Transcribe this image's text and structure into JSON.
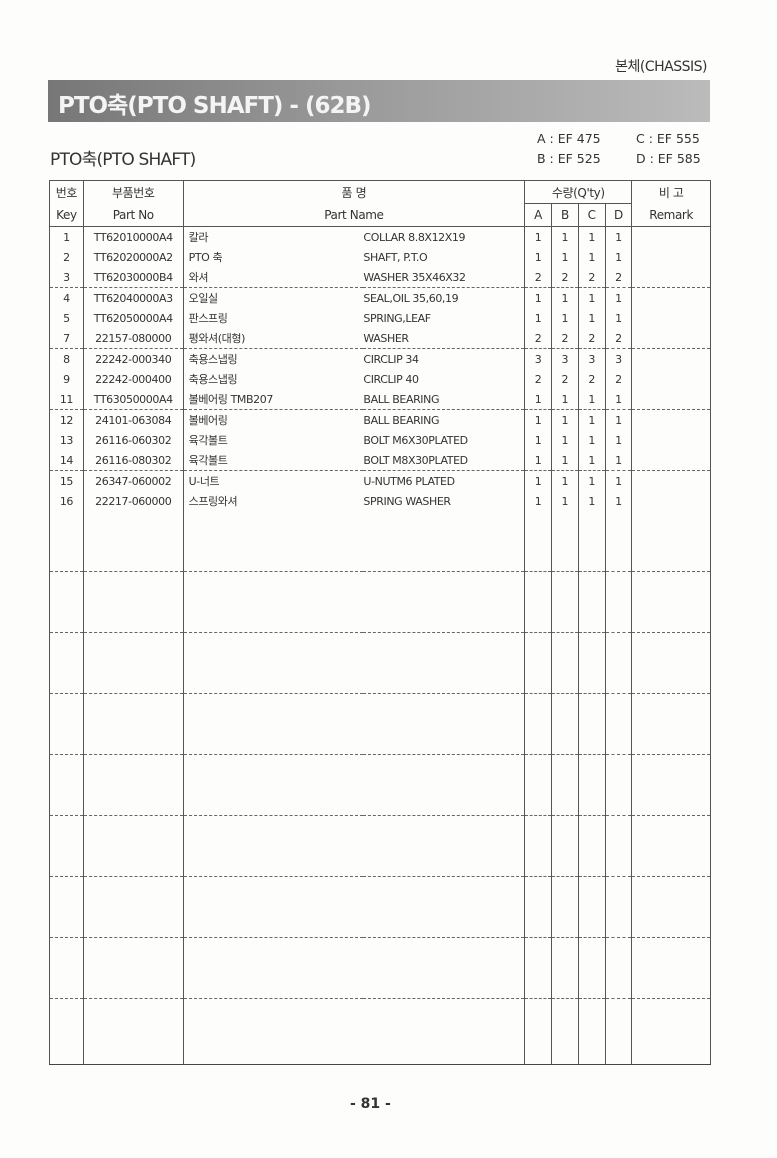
{
  "chapter": "본체(CHASSIS)",
  "title": "PTO축(PTO SHAFT) - (62B)",
  "subtitle": "PTO축(PTO SHAFT)",
  "models": {
    "a": "A : EF 475",
    "b": "B : EF 525",
    "c": "C : EF 555",
    "d": "D : EF 585"
  },
  "header": {
    "key_kr": "번호",
    "key_en": "Key",
    "partno_kr": "부품번호",
    "partno_en": "Part No",
    "name_kr": "품          명",
    "name_en": "Part Name",
    "qty": "수량(Q'ty)",
    "a": "A",
    "b": "B",
    "c": "C",
    "d": "D",
    "remark_kr": "비     고",
    "remark_en": "Remark"
  },
  "rows": [
    {
      "key": "1",
      "part_no": "TT62010000A4",
      "name_kr": "칼라",
      "name_en": "COLLAR 8.8X12X19",
      "qty": [
        "1",
        "1",
        "1",
        "1"
      ]
    },
    {
      "key": "2",
      "part_no": "TT62020000A2",
      "name_kr": "PTO 축",
      "name_en": "SHAFT, P.T.O",
      "qty": [
        "1",
        "1",
        "1",
        "1"
      ]
    },
    {
      "key": "3",
      "part_no": "TT62030000B4",
      "name_kr": "와셔",
      "name_en": "WASHER 35X46X32",
      "qty": [
        "2",
        "2",
        "2",
        "2"
      ]
    },
    {
      "key": "4",
      "part_no": "TT62040000A3",
      "name_kr": "오일실",
      "name_en": "SEAL,OIL 35,60,19",
      "qty": [
        "1",
        "1",
        "1",
        "1"
      ]
    },
    {
      "key": "5",
      "part_no": "TT62050000A4",
      "name_kr": "판스프링",
      "name_en": "SPRING,LEAF",
      "qty": [
        "1",
        "1",
        "1",
        "1"
      ]
    },
    {
      "key": "7",
      "part_no": "22157-080000",
      "name_kr": "평와셔(대형)",
      "name_en": "WASHER",
      "qty": [
        "2",
        "2",
        "2",
        "2"
      ]
    },
    {
      "key": "8",
      "part_no": "22242-000340",
      "name_kr": "축용스냅링",
      "name_en": "CIRCLIP 34",
      "qty": [
        "3",
        "3",
        "3",
        "3"
      ]
    },
    {
      "key": "9",
      "part_no": "22242-000400",
      "name_kr": "축용스냅링",
      "name_en": "CIRCLIP 40",
      "qty": [
        "2",
        "2",
        "2",
        "2"
      ]
    },
    {
      "key": "11",
      "part_no": "TT63050000A4",
      "name_kr": "볼베어링 TMB207",
      "name_en": "BALL BEARING",
      "qty": [
        "1",
        "1",
        "1",
        "1"
      ]
    },
    {
      "key": "12",
      "part_no": "24101-063084",
      "name_kr": "볼베어링",
      "name_en": "BALL BEARING",
      "qty": [
        "1",
        "1",
        "1",
        "1"
      ]
    },
    {
      "key": "13",
      "part_no": "26116-060302",
      "name_kr": "육각볼트",
      "name_en": "BOLT M6X30PLATED",
      "qty": [
        "1",
        "1",
        "1",
        "1"
      ]
    },
    {
      "key": "14",
      "part_no": "26116-080302",
      "name_kr": "육각볼트",
      "name_en": "BOLT M8X30PLATED",
      "qty": [
        "1",
        "1",
        "1",
        "1"
      ]
    },
    {
      "key": "15",
      "part_no": "26347-060002",
      "name_kr": "U-너트",
      "name_en": "U-NUTM6 PLATED",
      "qty": [
        "1",
        "1",
        "1",
        "1"
      ]
    },
    {
      "key": "16",
      "part_no": "22217-060000",
      "name_kr": "스프링와셔",
      "name_en": "SPRING WASHER",
      "qty": [
        "1",
        "1",
        "1",
        "1"
      ]
    }
  ],
  "page_number": "- 81 -"
}
